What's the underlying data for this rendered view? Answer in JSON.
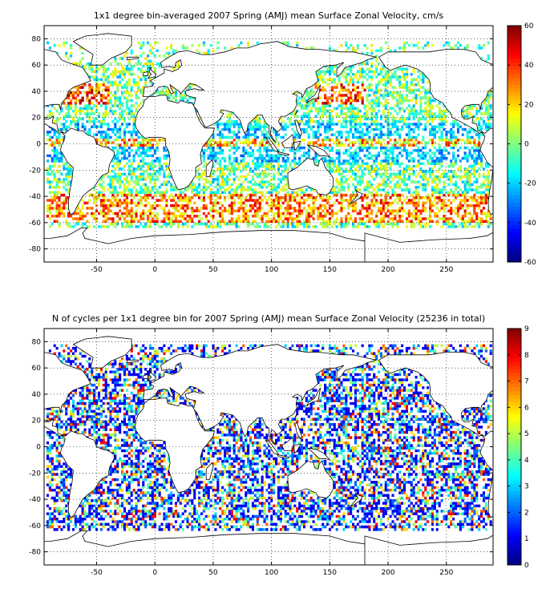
{
  "chart_data": [
    {
      "type": "heatmap",
      "title": "1x1 degree bin-averaged 2007 Spring (AMJ) mean Surface Zonal Velocity, cm/s",
      "xlabel": "",
      "ylabel": "",
      "xlim": [
        -95,
        290
      ],
      "ylim": [
        -90,
        90
      ],
      "xticks": [
        "-50",
        "0",
        "50",
        "100",
        "150",
        "200",
        "250"
      ],
      "yticks": [
        "80",
        "60",
        "40",
        "20",
        "0",
        "-20",
        "-40",
        "-60",
        "-80"
      ],
      "grid": true,
      "colorbar": {
        "min": -60,
        "max": 60,
        "ticks": [
          "60",
          "40",
          "20",
          "0",
          "-20",
          "-40",
          "-60"
        ],
        "colormap": "jet"
      }
    },
    {
      "type": "heatmap",
      "title": "N of cycles per 1x1 degree bin for 2007 Spring (AMJ) mean Surface Zonal Velocity (25236 in total)",
      "xlabel": "",
      "ylabel": "",
      "xlim": [
        -95,
        290
      ],
      "ylim": [
        -90,
        90
      ],
      "xticks": [
        "-50",
        "0",
        "50",
        "100",
        "150",
        "200",
        "250"
      ],
      "yticks": [
        "80",
        "60",
        "40",
        "20",
        "0",
        "-20",
        "-40",
        "-60",
        "-80"
      ],
      "grid": true,
      "colorbar": {
        "min": 0,
        "max": 9,
        "ticks": [
          "9",
          "8",
          "7",
          "6",
          "5",
          "4",
          "3",
          "2",
          "1",
          "0"
        ],
        "colormap": "jet"
      }
    }
  ]
}
